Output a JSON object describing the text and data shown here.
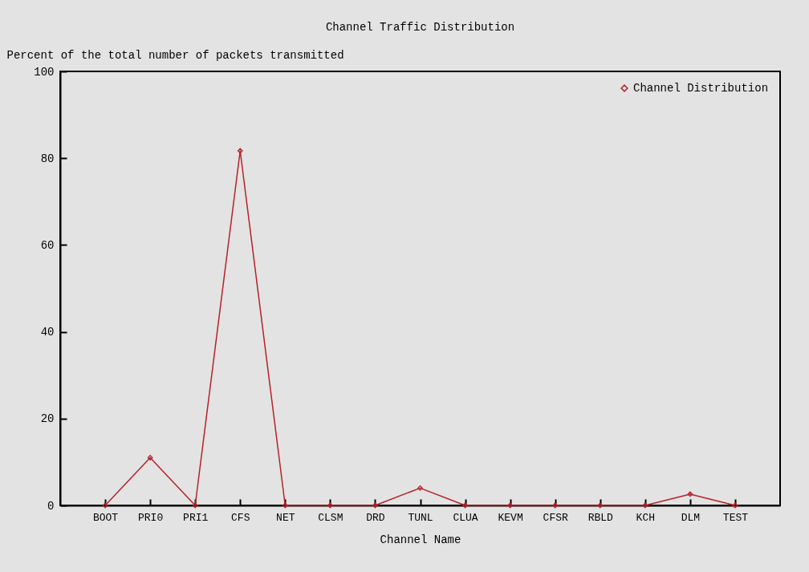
{
  "chart_data": {
    "type": "line",
    "title": "Channel Traffic Distribution",
    "ylabel": "Percent of the total number of packets transmitted",
    "xlabel": "Channel Name",
    "categories": [
      "BOOT",
      "PRI0",
      "PRI1",
      "CFS",
      "NET",
      "CLSM",
      "DRD",
      "TUNL",
      "CLUA",
      "KEVM",
      "CFSR",
      "RBLD",
      "KCH",
      "DLM",
      "TEST"
    ],
    "series": [
      {
        "name": "Channel Distribution",
        "color": "#b8202a",
        "values": [
          0,
          11,
          0,
          81.7,
          0,
          0,
          0,
          4,
          0,
          0,
          0,
          0,
          0,
          2.6,
          0
        ]
      }
    ],
    "ylim": [
      0,
      100
    ],
    "yticks": [
      0,
      20,
      40,
      60,
      80,
      100
    ],
    "legend": "top right",
    "marker": "diamond",
    "grid": false
  }
}
